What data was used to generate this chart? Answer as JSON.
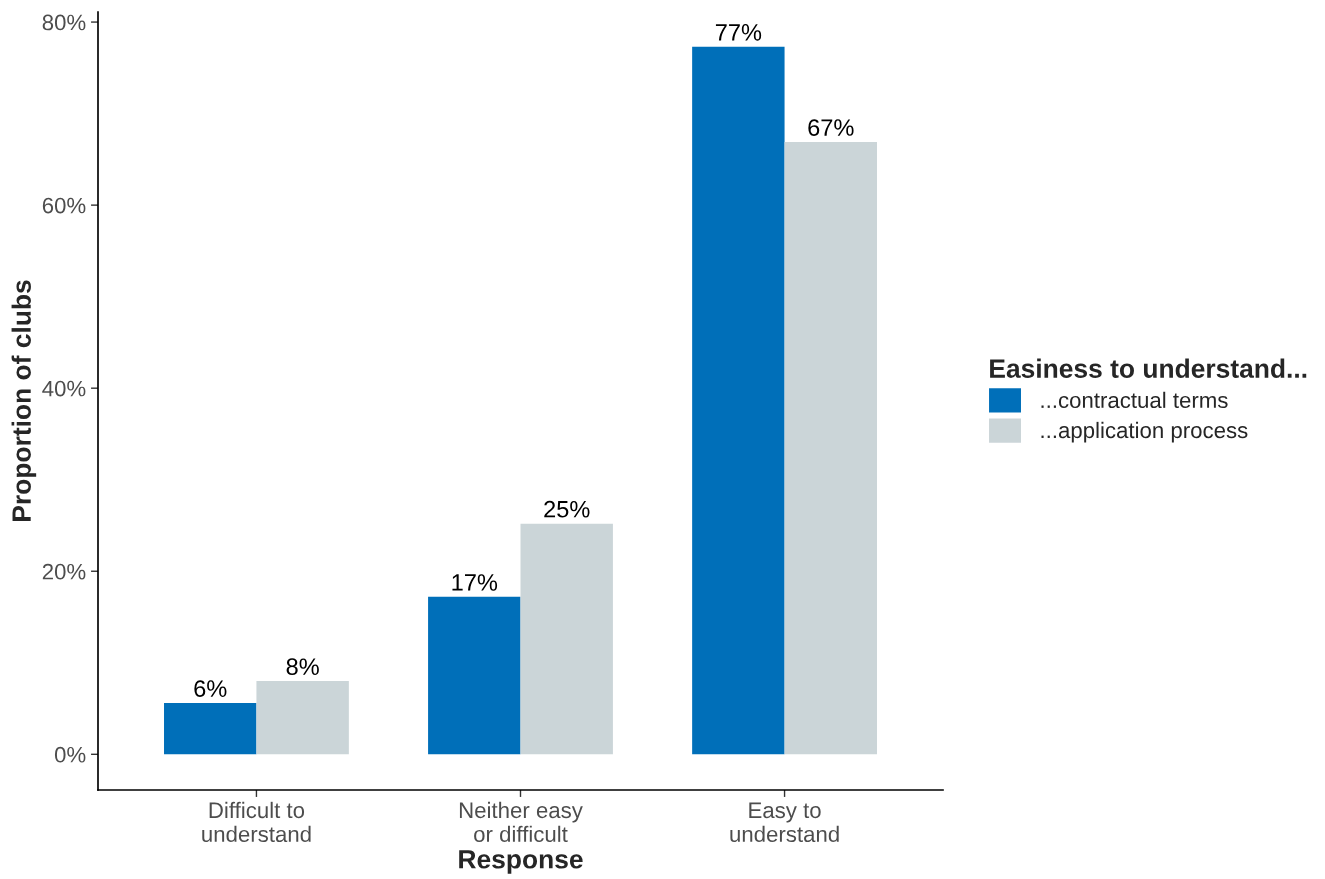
{
  "chart_data": {
    "type": "bar",
    "xlabel": "Response",
    "ylabel": "Proportion of clubs",
    "legend_title": "Easiness to understand...",
    "categories": [
      "Difficult to\nunderstand",
      "Neither easy\nor difficult",
      "Easy to\nunderstand"
    ],
    "series": [
      {
        "name": "...contractual terms",
        "color": "#006fb9",
        "values": [
          5.6,
          17.2,
          77.3
        ],
        "value_labels": [
          "6%",
          "17%",
          "77%"
        ]
      },
      {
        "name": "...application process",
        "color": "#cbd5d8",
        "values": [
          8,
          25.2,
          66.9
        ],
        "value_labels": [
          "8%",
          "25%",
          "67%"
        ]
      }
    ],
    "ylim": [
      -3.9,
      81.1
    ],
    "yticks": [
      {
        "value": 0,
        "label": "0%"
      },
      {
        "value": 20,
        "label": "20%"
      },
      {
        "value": 40,
        "label": "40%"
      },
      {
        "value": 60,
        "label": "60%"
      },
      {
        "value": 80,
        "label": "80%"
      }
    ],
    "grid": false,
    "legend": "right"
  }
}
